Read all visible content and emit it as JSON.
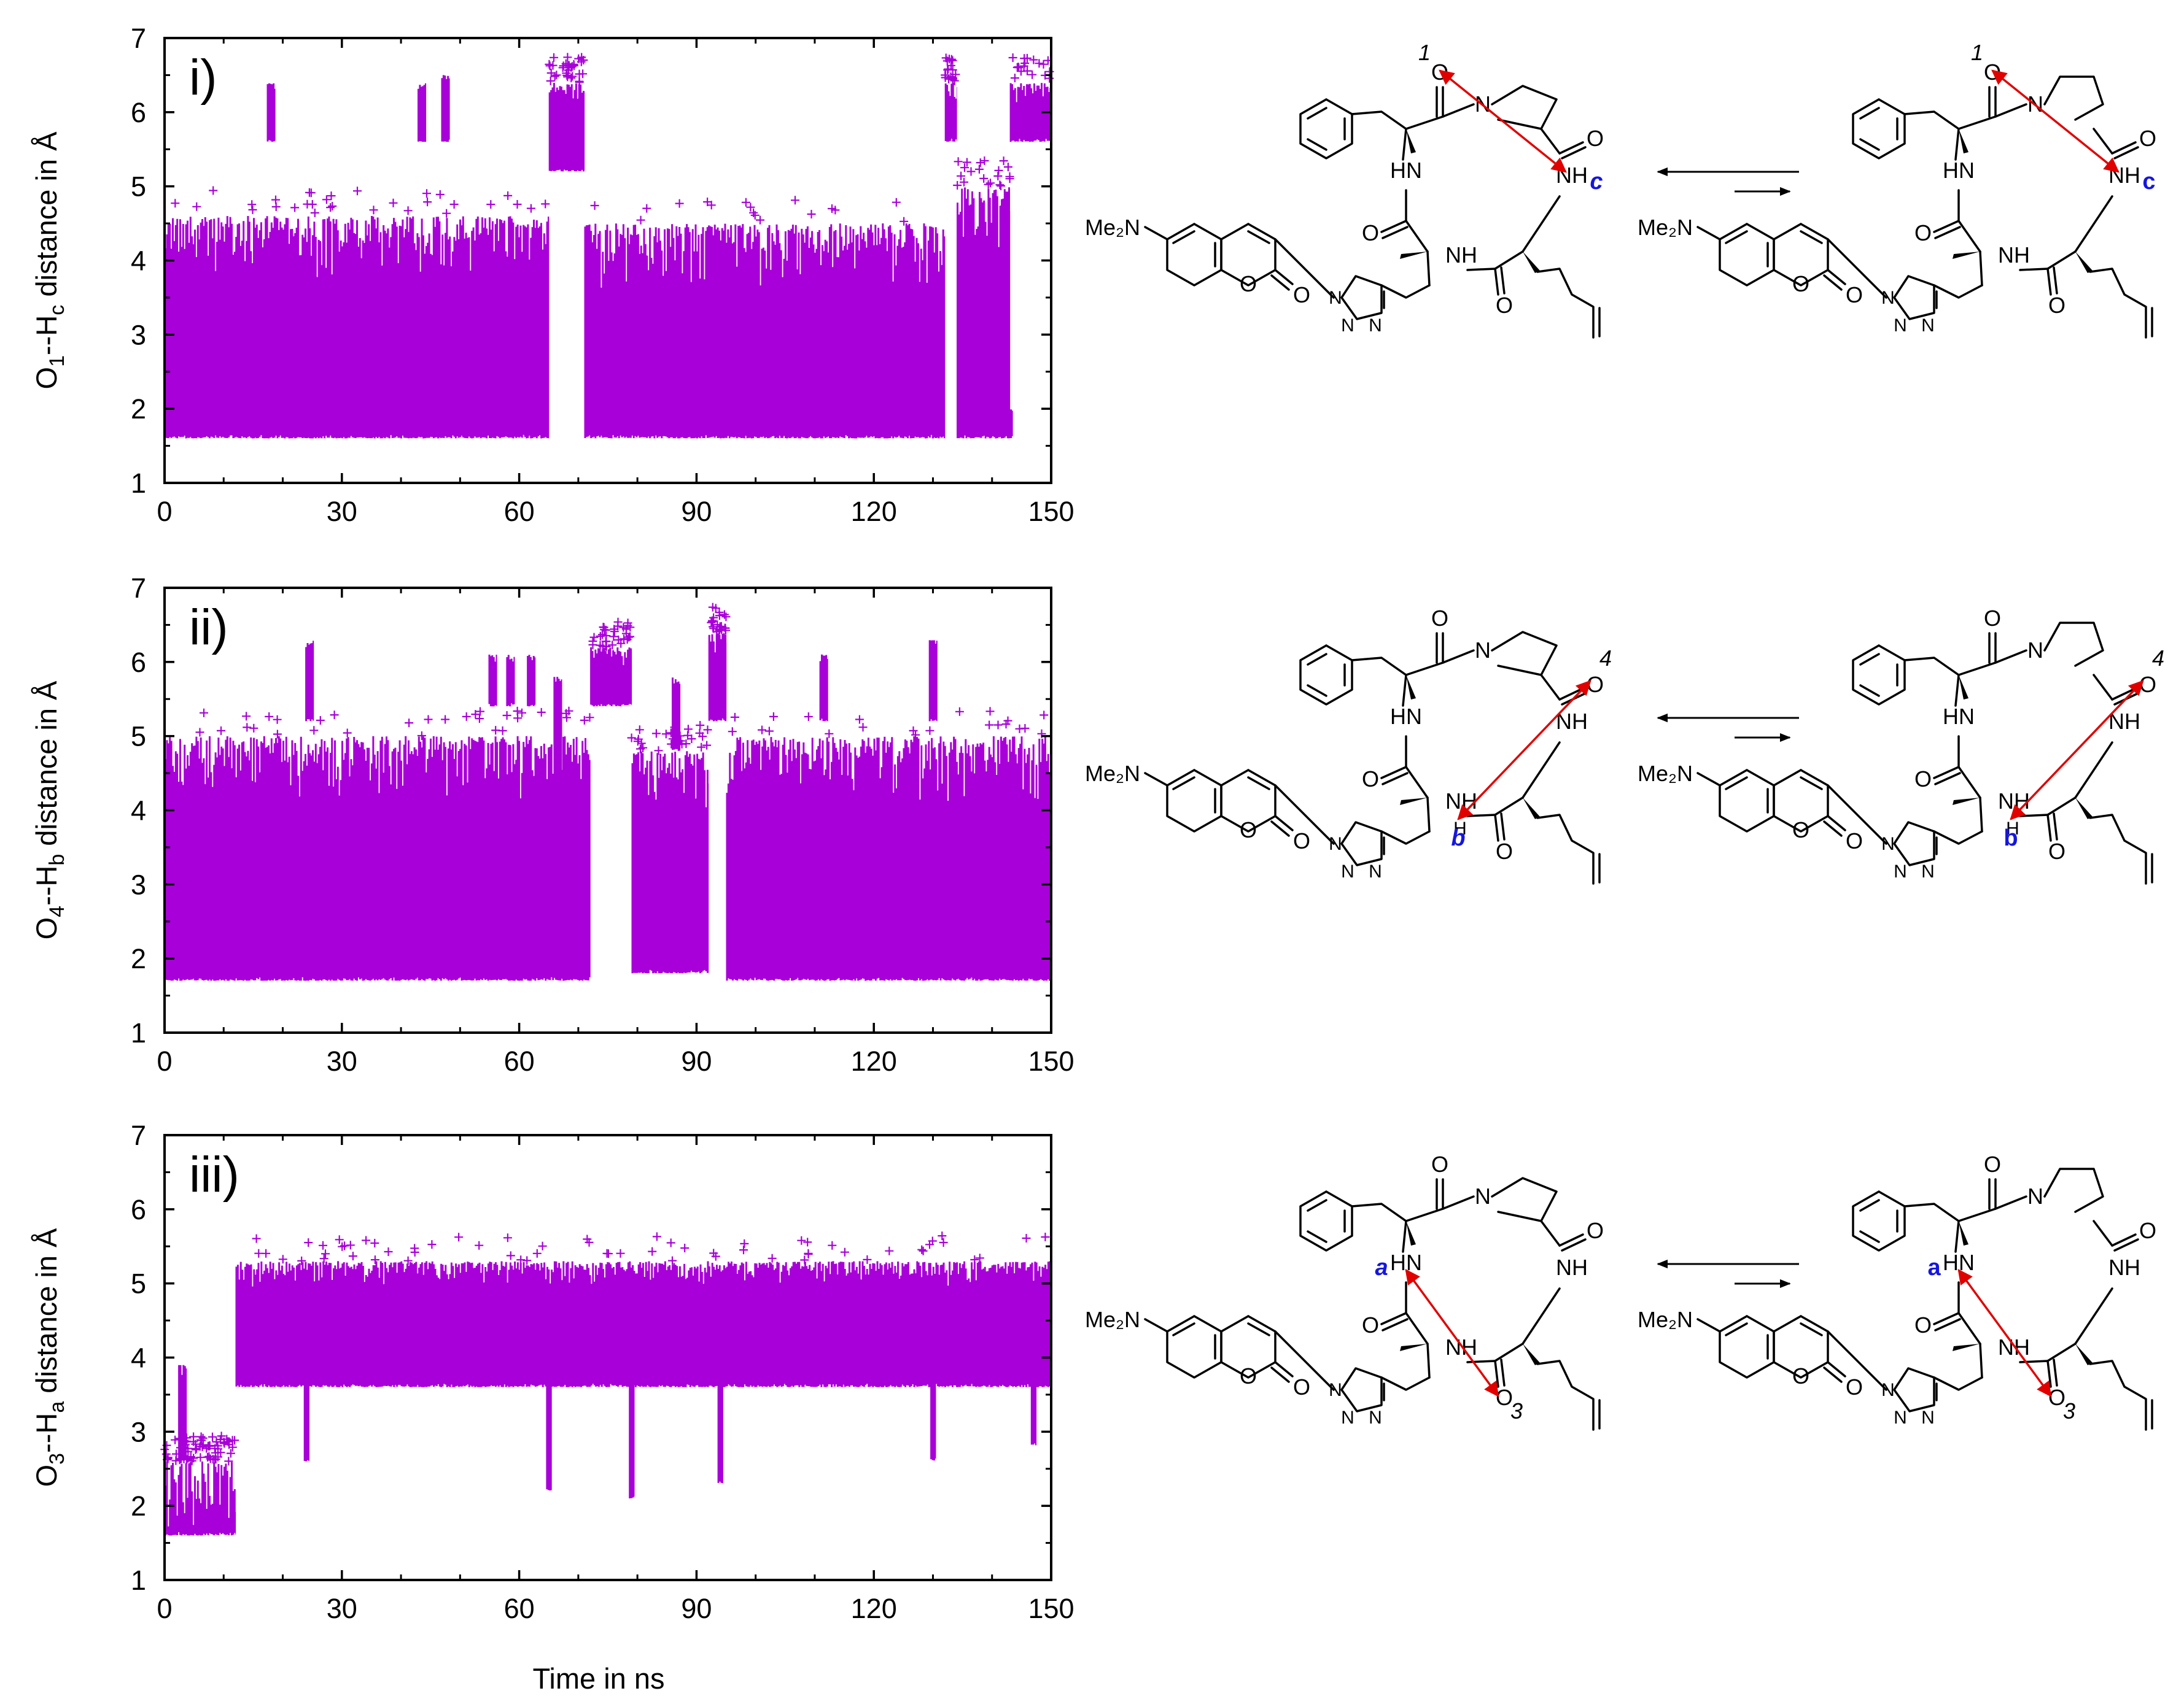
{
  "figure": {
    "x_axis_label": "Time in ns",
    "panels": [
      {
        "id": "i",
        "panel_label": "i)",
        "ylabel_main": "O",
        "ylabel_sub1": "1",
        "ylabel_mid": "--H",
        "ylabel_sub2": "c",
        "ylabel_tail": " distance in Å",
        "hbond_label": "c",
        "oxygen_label": "1",
        "label_style": "italic"
      },
      {
        "id": "ii",
        "panel_label": "ii)",
        "ylabel_main": "O",
        "ylabel_sub1": "4",
        "ylabel_mid": "--H",
        "ylabel_sub2": "b",
        "ylabel_tail": " distance in Å",
        "hbond_label": "b",
        "oxygen_label": "4",
        "label_style": "italic"
      },
      {
        "id": "iii",
        "panel_label": "iii)",
        "ylabel_main": "O",
        "ylabel_sub1": "3",
        "ylabel_mid": "--H",
        "ylabel_sub2": "a",
        "ylabel_tail": " distance in Å",
        "hbond_label": "a",
        "oxygen_label": "3",
        "label_style": "italic"
      }
    ],
    "structure_text": {
      "amine": "Me₂N",
      "NH": "NH",
      "HN": "HN",
      "N": "N",
      "O": "O",
      "H": "H"
    },
    "colors": {
      "scatter": "#a800d8",
      "hbond_arrow": "#e00000",
      "hbond_label": "#1515e0"
    }
  },
  "chart_data": [
    {
      "type": "scatter",
      "title": "",
      "marker": "+",
      "xlabel": "Time in ns",
      "ylabel": "O1--Hc distance in Å",
      "xlim": [
        0,
        150
      ],
      "ylim": [
        1,
        7
      ],
      "xticks": [
        0,
        30,
        60,
        90,
        120,
        150
      ],
      "yticks": [
        1,
        2,
        3,
        4,
        5,
        6,
        7
      ],
      "grid": false,
      "baseline_floor": 1.6,
      "segments": [
        {
          "x_start": 0,
          "x_end": 65,
          "state": "low",
          "y_min": 1.6,
          "y_max": 4.6
        },
        {
          "x_start": 65,
          "x_end": 71,
          "state": "high",
          "y_min": 5.2,
          "y_max": 6.4
        },
        {
          "x_start": 71,
          "x_end": 132,
          "state": "low",
          "y_min": 1.6,
          "y_max": 4.5
        },
        {
          "x_start": 132,
          "x_end": 134,
          "state": "high",
          "y_min": 5.6,
          "y_max": 6.4
        },
        {
          "x_start": 134,
          "x_end": 143,
          "state": "low",
          "y_min": 1.6,
          "y_max": 5.0
        },
        {
          "x_start": 143,
          "x_end": 150,
          "state": "high",
          "y_min": 5.6,
          "y_max": 6.4
        }
      ],
      "excursions": [
        {
          "x": 18,
          "y_min": 5.6,
          "y_max": 6.4
        },
        {
          "x": 43.5,
          "y_min": 5.6,
          "y_max": 6.4
        },
        {
          "x": 47.5,
          "y_min": 5.6,
          "y_max": 6.5
        }
      ],
      "dips": [
        {
          "x": 24,
          "y_max": 2.3
        },
        {
          "x": 92,
          "y_max": 2.8
        },
        {
          "x": 143,
          "y_max": 1.6
        }
      ]
    },
    {
      "type": "scatter",
      "title": "",
      "marker": "+",
      "xlabel": "Time in ns",
      "ylabel": "O4--Hb distance in Å",
      "xlim": [
        0,
        150
      ],
      "ylim": [
        1,
        7
      ],
      "xticks": [
        0,
        30,
        60,
        90,
        120,
        150
      ],
      "yticks": [
        1,
        2,
        3,
        4,
        5,
        6,
        7
      ],
      "grid": false,
      "baseline_floor": 1.7,
      "segments": [
        {
          "x_start": 0,
          "x_end": 72,
          "state": "low",
          "y_min": 1.7,
          "y_max": 5.0
        },
        {
          "x_start": 72,
          "x_end": 79,
          "state": "high",
          "y_min": 5.4,
          "y_max": 6.2
        },
        {
          "x_start": 79,
          "x_end": 92,
          "state": "low",
          "y_min": 1.8,
          "y_max": 4.8
        },
        {
          "x_start": 92,
          "x_end": 95,
          "state": "high",
          "y_min": 5.2,
          "y_max": 6.4
        },
        {
          "x_start": 95,
          "x_end": 150,
          "state": "low",
          "y_min": 1.7,
          "y_max": 5.0
        }
      ],
      "excursions": [
        {
          "x": 24.5,
          "y_min": 5.2,
          "y_max": 6.3
        },
        {
          "x": 55.5,
          "y_min": 5.4,
          "y_max": 6.1
        },
        {
          "x": 58.5,
          "y_min": 5.4,
          "y_max": 6.1
        },
        {
          "x": 62,
          "y_min": 5.4,
          "y_max": 6.1
        },
        {
          "x": 66.5,
          "y_min": 4.2,
          "y_max": 5.8
        },
        {
          "x": 86.5,
          "y_min": 4.8,
          "y_max": 5.8
        },
        {
          "x": 111.5,
          "y_min": 5.2,
          "y_max": 6.1
        },
        {
          "x": 130,
          "y_min": 5.2,
          "y_max": 6.3
        }
      ],
      "dips": []
    },
    {
      "type": "scatter",
      "title": "",
      "marker": "+",
      "xlabel": "Time in ns",
      "ylabel": "O3--Ha distance in Å",
      "xlim": [
        0,
        150
      ],
      "ylim": [
        1,
        7
      ],
      "xticks": [
        0,
        30,
        60,
        90,
        120,
        150
      ],
      "yticks": [
        1,
        2,
        3,
        4,
        5,
        6,
        7
      ],
      "grid": false,
      "baseline_floor": 1.6,
      "segments": [
        {
          "x_start": 0,
          "x_end": 12,
          "state": "low",
          "y_min": 1.6,
          "y_max": 2.6
        },
        {
          "x_start": 12,
          "x_end": 150,
          "state": "high",
          "y_min": 3.6,
          "y_max": 5.3
        }
      ],
      "excursions": [
        {
          "x": 3,
          "y_min": 2.6,
          "y_max": 3.9
        }
      ],
      "dips": [
        {
          "x": 24,
          "y_max": 2.6
        },
        {
          "x": 65,
          "y_max": 2.2
        },
        {
          "x": 79,
          "y_max": 2.1
        },
        {
          "x": 94,
          "y_max": 2.3
        },
        {
          "x": 130,
          "y_max": 2.6
        },
        {
          "x": 147,
          "y_max": 2.8
        }
      ]
    }
  ]
}
